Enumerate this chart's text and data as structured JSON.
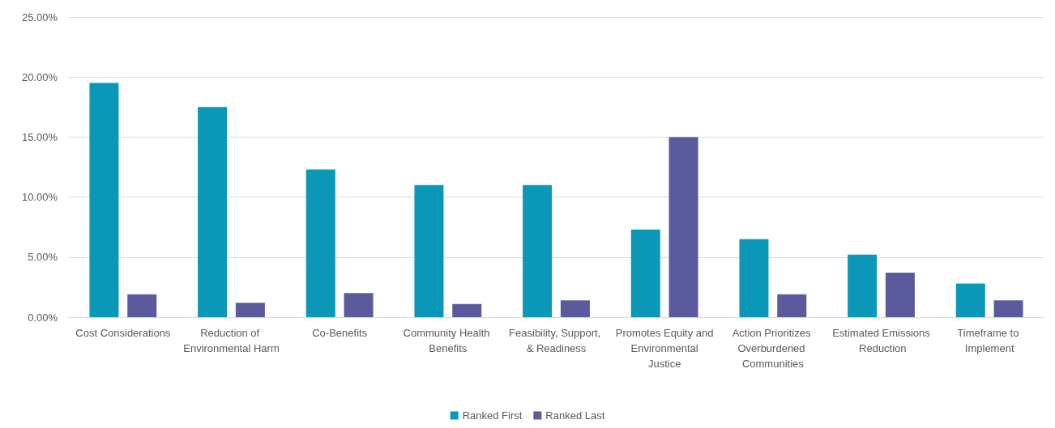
{
  "chart_data": {
    "type": "bar",
    "categories": [
      "Cost Considerations",
      "Reduction of Environmental Harm",
      "Co-Benefits",
      "Community Health Benefits",
      "Feasibility, Support, & Readiness",
      "Promotes Equity and Environmental Justice",
      "Action Prioritizes Overburdened Communities",
      "Estimated Emissions Reduction",
      "Timeframe to Implement"
    ],
    "series": [
      {
        "name": "Ranked First",
        "color": "#0b97b8",
        "values": [
          19.5,
          17.5,
          12.3,
          11.0,
          11.0,
          7.3,
          6.5,
          5.2,
          2.8
        ]
      },
      {
        "name": "Ranked Last",
        "color": "#5b5a9c",
        "values": [
          1.9,
          1.2,
          2.0,
          1.1,
          1.4,
          15.0,
          1.9,
          3.7,
          1.4
        ]
      }
    ],
    "ylim": [
      0,
      25
    ],
    "yticks": [
      {
        "value": 0,
        "label": "0.00%"
      },
      {
        "value": 5,
        "label": "5.00%"
      },
      {
        "value": 10,
        "label": "10.00%"
      },
      {
        "value": 15,
        "label": "15.00%"
      },
      {
        "value": 20,
        "label": "20.00%"
      },
      {
        "value": 25,
        "label": "25.00%"
      }
    ],
    "grid": "y",
    "legend": "bottom"
  }
}
